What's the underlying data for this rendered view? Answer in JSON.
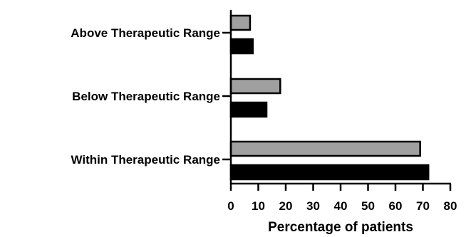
{
  "chart_data": {
    "type": "bar",
    "orientation": "horizontal",
    "categories": [
      "Above Therapeutic Range",
      "Below Therapeutic Range",
      "Within Therapeutic Range"
    ],
    "series": [
      {
        "values": [
          7,
          18,
          69
        ],
        "color": "#a0a0a0"
      },
      {
        "values": [
          8,
          13,
          72
        ],
        "color": "#000000"
      }
    ],
    "xlabel": "Percentage of patients",
    "ylabel": "",
    "title": "",
    "xlim": [
      0,
      80
    ],
    "xticks": [
      0,
      10,
      20,
      30,
      40,
      50,
      60,
      70,
      80
    ],
    "grid": false,
    "legend": "none"
  }
}
